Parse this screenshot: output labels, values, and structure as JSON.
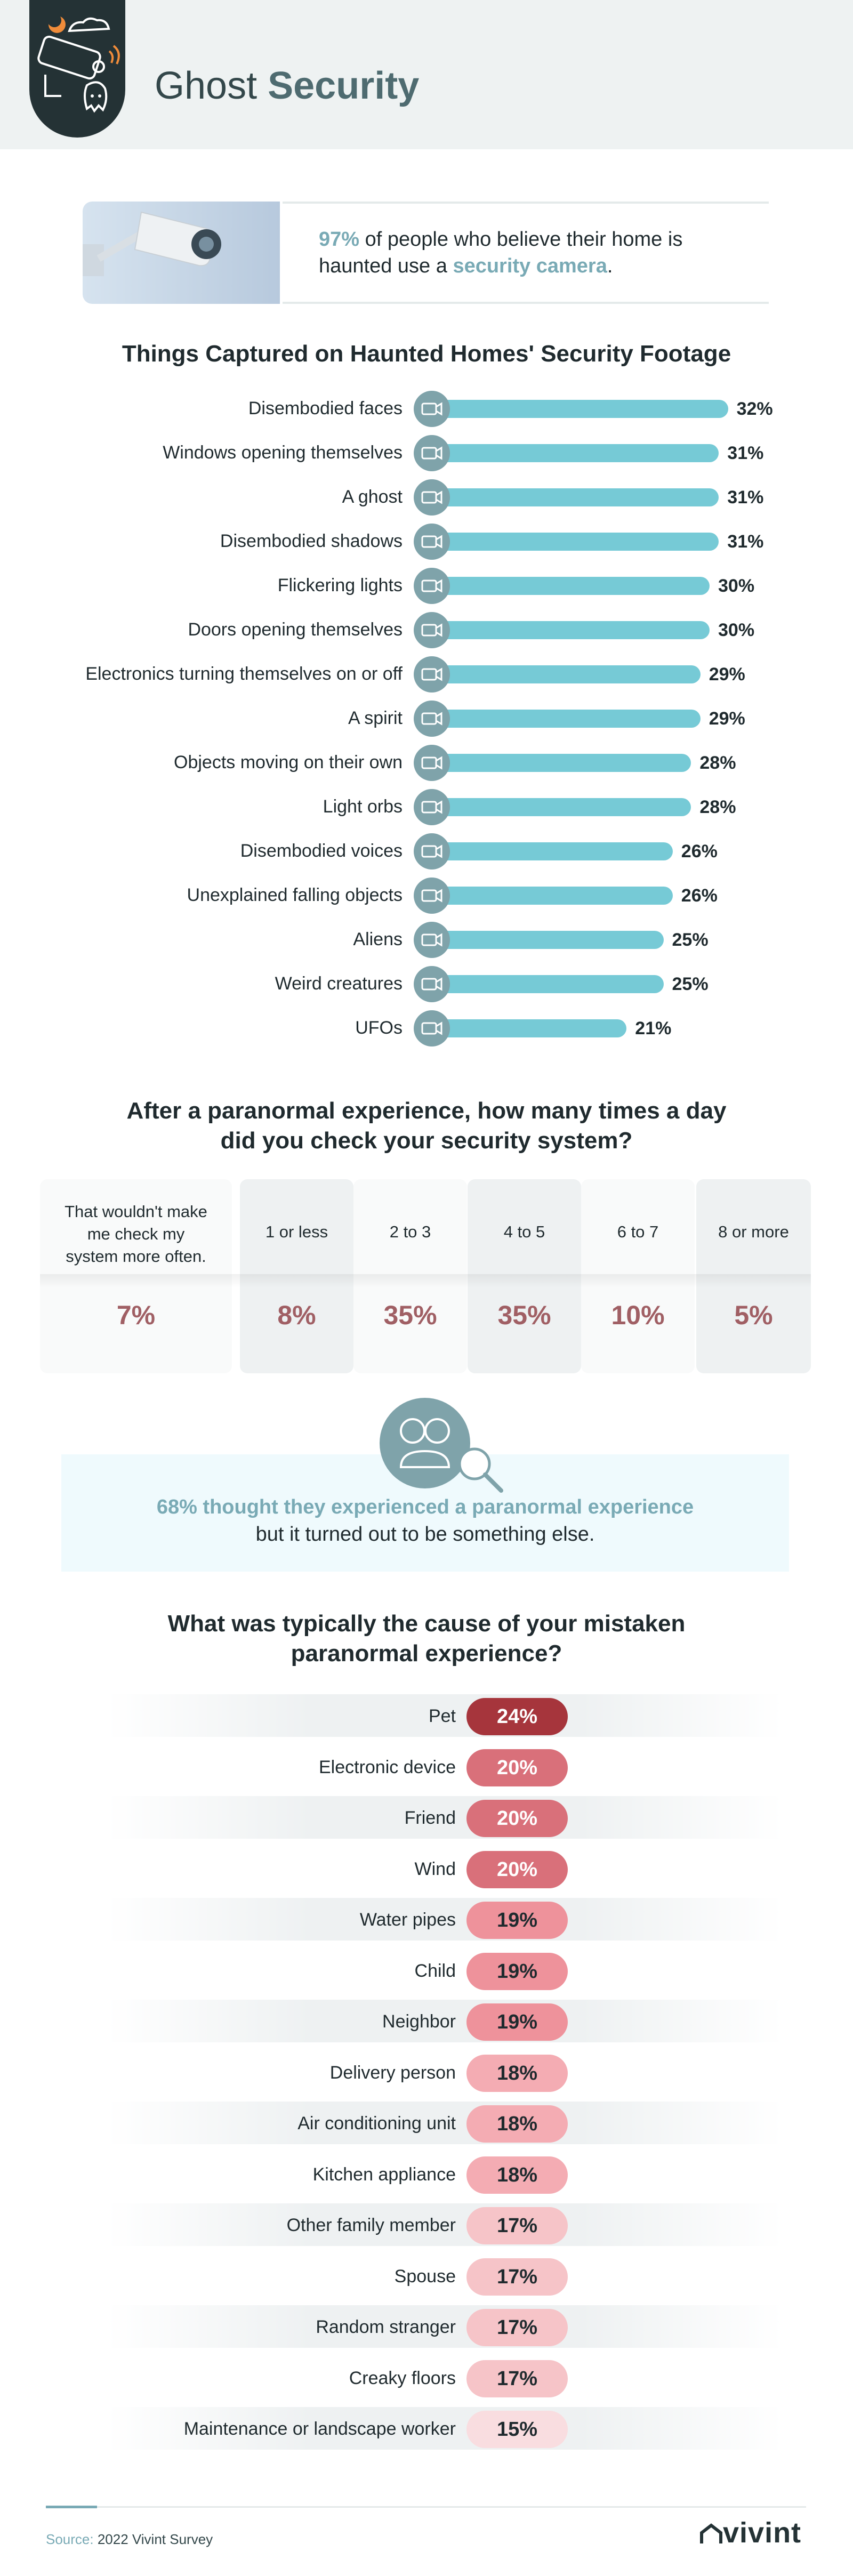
{
  "header": {
    "title_part1": "Ghost ",
    "title_part2": "Security"
  },
  "intro": {
    "stat": "97%",
    "text1": " of people who believe their home is haunted use a ",
    "highlight": "security camera",
    "text2": "."
  },
  "colors": {
    "bar": "#76cad6",
    "icon": "#7fa3aa",
    "accent": "#79aab5",
    "table_value": "#a05f64"
  },
  "chart_data": [
    {
      "type": "bar",
      "orientation": "horizontal",
      "title": "Things Captured on Haunted Homes' Security Footage",
      "categories": [
        "Disembodied faces",
        "Windows opening themselves",
        "A ghost",
        "Disembodied shadows",
        "Flickering lights",
        "Doors opening themselves",
        "Electronics turning themselves on or off",
        "A spirit",
        "Objects moving on their own",
        "Light orbs",
        "Disembodied voices",
        "Unexplained falling objects",
        "Aliens",
        "Weird creatures",
        "UFOs"
      ],
      "values": [
        32,
        31,
        31,
        31,
        30,
        30,
        29,
        29,
        28,
        28,
        26,
        26,
        25,
        25,
        21
      ],
      "value_labels": [
        "32%",
        "31%",
        "31%",
        "31%",
        "30%",
        "30%",
        "29%",
        "29%",
        "28%",
        "28%",
        "26%",
        "26%",
        "25%",
        "25%",
        "21%"
      ],
      "unit": "%",
      "icon": "camera-icon"
    },
    {
      "type": "table",
      "title_line1": "After a paranormal experience, how many times a day",
      "title_line2": "did you check your security system?",
      "columns": [
        {
          "header_lines": [
            "That wouldn't make",
            "me check my",
            "system more often."
          ],
          "value": 7,
          "label": "7%"
        },
        {
          "header_lines": [
            "1 or less"
          ],
          "value": 8,
          "label": "8%"
        },
        {
          "header_lines": [
            "2 to 3"
          ],
          "value": 35,
          "label": "35%"
        },
        {
          "header_lines": [
            "4 to 5"
          ],
          "value": 35,
          "label": "35%"
        },
        {
          "header_lines": [
            "6 to 7"
          ],
          "value": 10,
          "label": "10%"
        },
        {
          "header_lines": [
            "8 or more"
          ],
          "value": 5,
          "label": "5%"
        }
      ]
    },
    {
      "type": "bar",
      "title_line1": "What was typically the cause of your mistaken",
      "title_line2": "paranormal experience?",
      "categories": [
        "Pet",
        "Electronic device",
        "Friend",
        "Wind",
        "Water pipes",
        "Child",
        "Neighbor",
        "Delivery person",
        "Air conditioning unit",
        "Kitchen appliance",
        "Other family member",
        "Spouse",
        "Random stranger",
        "Creaky floors",
        "Maintenance or landscape worker"
      ],
      "values": [
        24,
        20,
        20,
        20,
        19,
        19,
        19,
        18,
        18,
        18,
        17,
        17,
        17,
        17,
        15
      ],
      "value_labels": [
        "24%",
        "20%",
        "20%",
        "20%",
        "19%",
        "19%",
        "19%",
        "18%",
        "18%",
        "18%",
        "17%",
        "17%",
        "17%",
        "17%",
        "15%"
      ],
      "unit": "%"
    }
  ],
  "callout": {
    "line1": "68% thought they experienced a paranormal experience",
    "line2": "but it turned out to be something else."
  },
  "footer": {
    "source_label": "Source:",
    "source_text": " 2022 Vivint Survey",
    "logo": "vivint"
  }
}
